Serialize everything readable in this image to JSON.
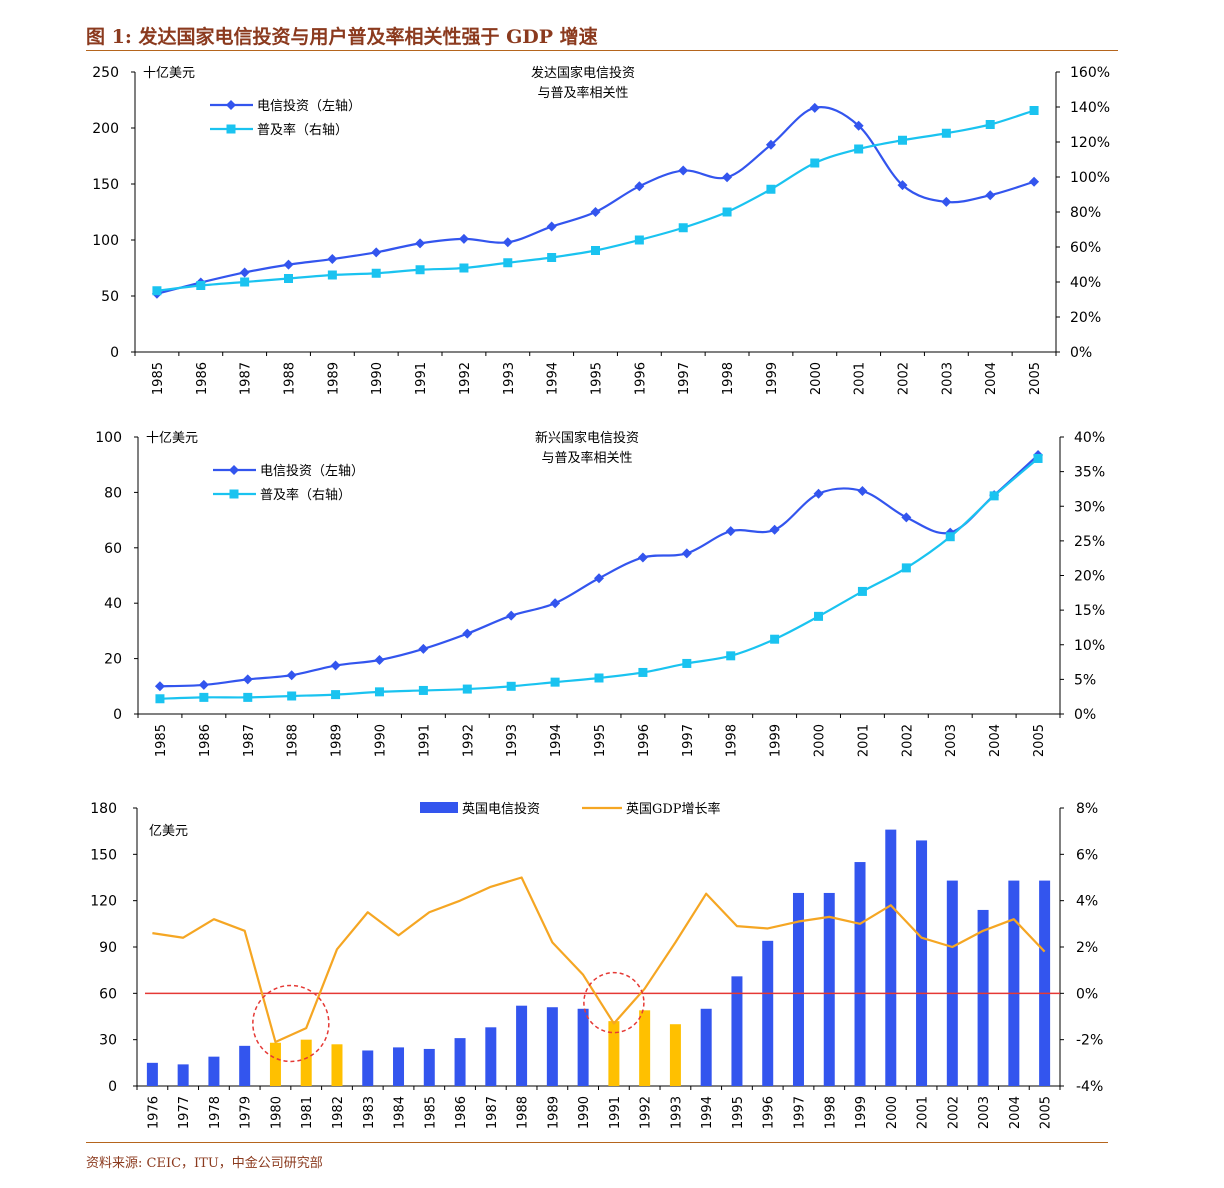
{
  "figure_title": "图 1: 发达国家电信投资与用户普及率相关性强于 GDP 增速",
  "source": "资料来源: CEIC，ITU，中金公司研究部",
  "chart_data": [
    {
      "type": "line",
      "title": "发达国家电信投资",
      "subtitle": "与普及率相关性",
      "unit_label": "十亿美元",
      "x": [
        "1985",
        "1986",
        "1987",
        "1988",
        "1989",
        "1990",
        "1991",
        "1992",
        "1993",
        "1994",
        "1995",
        "1996",
        "1997",
        "1998",
        "1999",
        "2000",
        "2001",
        "2002",
        "2003",
        "2004",
        "2005"
      ],
      "ylim_left": [
        0,
        250
      ],
      "yticks_left": [
        "0",
        "50",
        "100",
        "150",
        "200",
        "250"
      ],
      "ylim_right": [
        0,
        160
      ],
      "yticks_right": [
        "0%",
        "20%",
        "40%",
        "60%",
        "80%",
        "100%",
        "120%",
        "140%",
        "160%"
      ],
      "series": [
        {
          "name": "电信投资（左轴）",
          "axis": "left",
          "color": "#3355EE",
          "marker": "diamond",
          "values": [
            52,
            62,
            71,
            78,
            83,
            89,
            97,
            101,
            98,
            112,
            125,
            148,
            162,
            156,
            185,
            218,
            202,
            149,
            134,
            140,
            152
          ]
        },
        {
          "name": "普及率（右轴）",
          "axis": "right",
          "color": "#1AC3F0",
          "marker": "square",
          "values": [
            35,
            38,
            40,
            42,
            44,
            45,
            47,
            48,
            51,
            54,
            58,
            64,
            71,
            80,
            93,
            108,
            116,
            121,
            125,
            130,
            138
          ]
        }
      ],
      "legend": "top-left"
    },
    {
      "type": "line",
      "title": "新兴国家电信投资",
      "subtitle": "与普及率相关性",
      "unit_label": "十亿美元",
      "x": [
        "1985",
        "1986",
        "1987",
        "1988",
        "1989",
        "1990",
        "1991",
        "1992",
        "1993",
        "1994",
        "1995",
        "1996",
        "1997",
        "1998",
        "1999",
        "2000",
        "2001",
        "2002",
        "2003",
        "2004",
        "2005"
      ],
      "ylim_left": [
        0,
        100
      ],
      "yticks_left": [
        "0",
        "20",
        "40",
        "60",
        "80",
        "100"
      ],
      "ylim_right": [
        0,
        40
      ],
      "yticks_right": [
        "0%",
        "5%",
        "10%",
        "15%",
        "20%",
        "25%",
        "30%",
        "35%",
        "40%"
      ],
      "series": [
        {
          "name": "电信投资（左轴）",
          "axis": "left",
          "color": "#3355EE",
          "marker": "diamond",
          "values": [
            10,
            10.5,
            12.5,
            14,
            17.5,
            19.5,
            23.5,
            29,
            35.5,
            40,
            49,
            56.5,
            58,
            66,
            66.5,
            79.5,
            80.5,
            71,
            65.5,
            79,
            93.5
          ]
        },
        {
          "name": "普及率（右轴）",
          "axis": "right",
          "color": "#1AC3F0",
          "marker": "square",
          "values": [
            2.2,
            2.4,
            2.4,
            2.6,
            2.8,
            3.2,
            3.4,
            3.6,
            4,
            4.6,
            5.2,
            6,
            7.3,
            8.4,
            10.8,
            14.1,
            17.7,
            21.1,
            25.6,
            31.5,
            36.9
          ]
        }
      ],
      "legend": "top-left"
    },
    {
      "type": "bar",
      "unit_label": "亿美元",
      "categories": [
        "1976",
        "1977",
        "1978",
        "1979",
        "1980",
        "1981",
        "1982",
        "1983",
        "1984",
        "1985",
        "1986",
        "1987",
        "1988",
        "1989",
        "1990",
        "1991",
        "1992",
        "1993",
        "1994",
        "1995",
        "1996",
        "1997",
        "1998",
        "1999",
        "2000",
        "2001",
        "2002",
        "2003",
        "2004",
        "2005"
      ],
      "ylim_left": [
        0,
        180
      ],
      "yticks_left": [
        "0",
        "30",
        "60",
        "90",
        "120",
        "150",
        "180"
      ],
      "ylim_right": [
        -4,
        8
      ],
      "yticks_right": [
        "-4%",
        "-2%",
        "0%",
        "2%",
        "4%",
        "6%",
        "8%"
      ],
      "bar_series": {
        "name": "英国电信投资",
        "color": "#3355EE",
        "highlight_color": "#FFC000",
        "highlighted": [
          "1980",
          "1981",
          "1982",
          "1991",
          "1992",
          "1993"
        ],
        "values": [
          15,
          14,
          19,
          26,
          28,
          30,
          27,
          23,
          25,
          24,
          31,
          38,
          52,
          51,
          50,
          42,
          49,
          40,
          50,
          71,
          94,
          125,
          125,
          145,
          166,
          159,
          133,
          114,
          133,
          133
        ]
      },
      "line_series": {
        "name": "英国GDP增长率",
        "color": "#F5A623",
        "values": [
          2.6,
          2.4,
          3.2,
          2.7,
          -2.1,
          -1.5,
          1.9,
          3.5,
          2.5,
          3.5,
          4.0,
          4.6,
          5.0,
          2.2,
          0.8,
          -1.3,
          0.2,
          2.2,
          4.3,
          2.9,
          2.8,
          3.1,
          3.3,
          3.0,
          3.8,
          2.4,
          2.0,
          2.7,
          3.2,
          1.8
        ]
      },
      "reference_line": {
        "value": 0,
        "axis": "right",
        "color": "#E53935"
      },
      "circled_years": [
        "1980",
        "1981",
        "1991"
      ],
      "legend": "top-center"
    }
  ]
}
